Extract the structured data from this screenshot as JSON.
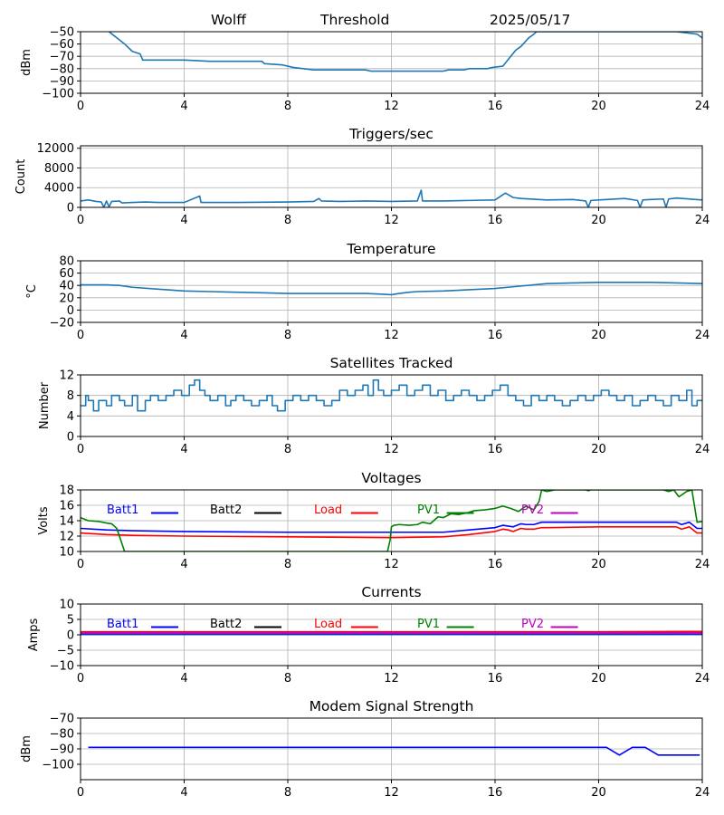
{
  "header": {
    "station": "Wolff",
    "mode": "Threshold",
    "date": "2025/05/17"
  },
  "chart_data": [
    {
      "id": "signal",
      "type": "line",
      "title": "",
      "xlabel": "",
      "ylabel": "dBm",
      "xlim": [
        0,
        24
      ],
      "ylim": [
        -100,
        -50
      ],
      "xticks": [
        0,
        4,
        8,
        12,
        16,
        20,
        24
      ],
      "yticks": [
        -100,
        -90,
        -80,
        -70,
        -60,
        -50
      ],
      "grid": true,
      "series": [
        {
          "color": "#1f77b4",
          "step": false,
          "x": [
            1.1,
            1.4,
            1.7,
            2.0,
            2.3,
            2.4,
            4.0,
            5.0,
            7.0,
            7.1,
            7.8,
            8.0,
            8.2,
            8.6,
            9.0,
            11.0,
            11.2,
            14.0,
            14.2,
            14.8,
            15.0,
            15.7,
            15.9,
            16.3,
            16.8,
            17.0,
            17.3,
            17.5,
            17.6,
            23.0,
            23.8,
            24.0
          ],
          "y": [
            -50,
            -55,
            -60,
            -66,
            -68,
            -73,
            -73,
            -74,
            -74,
            -76,
            -77,
            -78,
            -79,
            -80,
            -81,
            -81,
            -82,
            -82,
            -81,
            -81,
            -80,
            -80,
            -79,
            -78,
            -65,
            -62,
            -55,
            -52,
            -50,
            -50,
            -52,
            -55
          ]
        }
      ]
    },
    {
      "id": "triggers",
      "type": "line",
      "title": "Triggers/sec",
      "xlabel": "",
      "ylabel": "Count",
      "xlim": [
        0,
        24
      ],
      "ylim": [
        0,
        12500
      ],
      "xticks": [
        0,
        4,
        8,
        12,
        16,
        20,
        24
      ],
      "yticks": [
        0,
        4000,
        8000,
        12000
      ],
      "grid": true,
      "series": [
        {
          "color": "#1f77b4",
          "step": false,
          "x": [
            0,
            0.3,
            0.6,
            0.8,
            0.9,
            1.0,
            1.1,
            1.2,
            1.5,
            1.6,
            2.0,
            2.5,
            3.0,
            4.0,
            4.6,
            4.65,
            4.7,
            6.0,
            8.0,
            9.0,
            9.2,
            9.3,
            10.0,
            11.0,
            12.0,
            13.0,
            13.15,
            13.2,
            13.3,
            14.0,
            15.0,
            16.0,
            16.4,
            16.5,
            16.7,
            17.0,
            18.0,
            19.0,
            19.5,
            19.6,
            19.7,
            20.0,
            21.0,
            21.5,
            21.6,
            21.7,
            22.0,
            22.5,
            22.6,
            22.7,
            23.0,
            24.0
          ],
          "y": [
            1300,
            1500,
            1200,
            1100,
            0,
            1300,
            100,
            1200,
            1300,
            900,
            1000,
            1100,
            1000,
            1000,
            2300,
            1000,
            1000,
            1000,
            1100,
            1200,
            1800,
            1300,
            1200,
            1300,
            1200,
            1300,
            3500,
            1300,
            1300,
            1300,
            1400,
            1500,
            2900,
            2600,
            2000,
            1800,
            1500,
            1600,
            1300,
            0,
            1400,
            1500,
            1800,
            1400,
            0,
            1500,
            1600,
            1700,
            0,
            1700,
            1900,
            1500
          ]
        }
      ]
    },
    {
      "id": "temperature",
      "type": "line",
      "title": "Temperature",
      "xlabel": "",
      "ylabel": "°C",
      "xlim": [
        0,
        24
      ],
      "ylim": [
        -20,
        80
      ],
      "xticks": [
        0,
        4,
        8,
        12,
        16,
        20,
        24
      ],
      "yticks": [
        -20,
        0,
        20,
        40,
        60,
        80
      ],
      "grid": true,
      "series": [
        {
          "color": "#1f77b4",
          "step": false,
          "x": [
            0,
            1.0,
            1.5,
            2.0,
            3.0,
            4.0,
            5.0,
            6.0,
            7.0,
            8.0,
            9.0,
            10.0,
            11.0,
            11.5,
            12.0,
            12.3,
            12.7,
            13.0,
            14.0,
            15.0,
            16.0,
            16.5,
            17.0,
            17.5,
            18.0,
            19.0,
            20.0,
            21.0,
            22.0,
            23.0,
            24.0
          ],
          "y": [
            41,
            41,
            40,
            37,
            34,
            31,
            30,
            29,
            28,
            27,
            27,
            27,
            27,
            26,
            25,
            27,
            29,
            30,
            31,
            33,
            35,
            37,
            39,
            41,
            43,
            44,
            45,
            45,
            45,
            44,
            43
          ]
        }
      ]
    },
    {
      "id": "satellites",
      "type": "line",
      "title": "Satellites Tracked",
      "xlabel": "",
      "ylabel": "Number",
      "xlim": [
        0,
        24
      ],
      "ylim": [
        0,
        12
      ],
      "xticks": [
        0,
        4,
        8,
        12,
        16,
        20,
        24
      ],
      "yticks": [
        0,
        4,
        8,
        12
      ],
      "grid": true,
      "series": [
        {
          "color": "#1f77b4",
          "step": true,
          "x": [
            0,
            0.2,
            0.3,
            0.5,
            0.7,
            1.0,
            1.2,
            1.5,
            1.7,
            2.0,
            2.2,
            2.5,
            2.7,
            3.0,
            3.3,
            3.6,
            3.9,
            4.2,
            4.4,
            4.6,
            4.8,
            5.0,
            5.3,
            5.6,
            5.8,
            6.0,
            6.3,
            6.6,
            6.9,
            7.2,
            7.4,
            7.6,
            7.9,
            8.2,
            8.5,
            8.8,
            9.1,
            9.4,
            9.7,
            10.0,
            10.3,
            10.6,
            10.9,
            11.1,
            11.3,
            11.5,
            11.7,
            12.0,
            12.3,
            12.6,
            12.9,
            13.2,
            13.5,
            13.8,
            14.1,
            14.4,
            14.7,
            15.0,
            15.3,
            15.6,
            15.9,
            16.2,
            16.5,
            16.8,
            17.1,
            17.4,
            17.7,
            18.0,
            18.3,
            18.6,
            18.9,
            19.2,
            19.5,
            19.8,
            20.1,
            20.4,
            20.7,
            21.0,
            21.3,
            21.6,
            21.9,
            22.2,
            22.5,
            22.8,
            23.1,
            23.4,
            23.6,
            23.8,
            24.0
          ],
          "y": [
            6,
            8,
            7,
            5,
            7,
            6,
            8,
            7,
            6,
            8,
            5,
            7,
            8,
            7,
            8,
            9,
            8,
            10,
            11,
            9,
            8,
            7,
            8,
            6,
            7,
            8,
            7,
            6,
            7,
            8,
            6,
            5,
            7,
            8,
            7,
            8,
            7,
            6,
            7,
            9,
            8,
            9,
            10,
            8,
            11,
            9,
            8,
            9,
            10,
            8,
            9,
            10,
            8,
            9,
            7,
            8,
            9,
            8,
            7,
            8,
            9,
            10,
            8,
            7,
            6,
            8,
            7,
            8,
            7,
            6,
            7,
            8,
            7,
            8,
            9,
            8,
            7,
            8,
            6,
            7,
            8,
            7,
            6,
            8,
            7,
            9,
            6,
            7,
            7
          ]
        }
      ]
    },
    {
      "id": "voltages",
      "type": "line",
      "title": "Voltages",
      "xlabel": "",
      "ylabel": "Volts",
      "xlim": [
        0,
        24
      ],
      "ylim": [
        10,
        18
      ],
      "xticks": [
        0,
        4,
        8,
        12,
        16,
        20,
        24
      ],
      "yticks": [
        10,
        12,
        14,
        16,
        18
      ],
      "grid": true,
      "legend": "top",
      "series": [
        {
          "name": "Batt1",
          "color": "#0000ff",
          "step": false,
          "x": [
            0,
            1,
            2,
            4,
            8,
            12,
            14,
            15,
            16,
            16.3,
            16.5,
            16.7,
            17.0,
            17.2,
            17.5,
            17.8,
            18,
            20,
            22,
            23,
            23.2,
            23.5,
            23.8,
            24
          ],
          "y": [
            13.0,
            12.8,
            12.7,
            12.6,
            12.5,
            12.5,
            12.5,
            12.8,
            13.1,
            13.4,
            13.3,
            13.2,
            13.6,
            13.5,
            13.5,
            13.8,
            13.8,
            13.8,
            13.8,
            13.8,
            13.5,
            13.8,
            13.0,
            13.0
          ]
        },
        {
          "name": "Batt2",
          "color": "#000000",
          "step": false,
          "x": [],
          "y": []
        },
        {
          "name": "Load",
          "color": "#ff0000",
          "step": false,
          "x": [
            0,
            1,
            2,
            4,
            8,
            12,
            14,
            15,
            16,
            16.3,
            16.5,
            16.7,
            17.0,
            17.2,
            17.5,
            17.8,
            18,
            20,
            22,
            23,
            23.2,
            23.5,
            23.8,
            24
          ],
          "y": [
            12.4,
            12.2,
            12.1,
            12.0,
            11.9,
            11.8,
            11.9,
            12.2,
            12.6,
            12.9,
            12.8,
            12.6,
            13.0,
            12.9,
            12.9,
            13.1,
            13.1,
            13.2,
            13.2,
            13.2,
            12.9,
            13.2,
            12.4,
            12.4
          ]
        },
        {
          "name": "PV1",
          "color": "#008000",
          "step": false,
          "x": [
            0,
            0.3,
            0.7,
            1.0,
            1.2,
            1.4,
            1.5,
            1.6,
            1.7,
            11.85,
            11.95,
            12.0,
            12.1,
            12.3,
            12.7,
            13.0,
            13.2,
            13.5,
            13.8,
            14.0,
            14.3,
            14.6,
            14.9,
            15.2,
            15.6,
            16.0,
            16.3,
            16.6,
            16.9,
            17.2,
            17.5,
            17.7,
            17.8,
            18.0,
            18.3,
            19.5,
            19.6,
            19.7,
            20.0,
            22.5,
            22.7,
            22.9,
            23.1,
            23.4,
            23.6,
            23.8,
            24.0
          ],
          "y": [
            14.4,
            14.0,
            13.9,
            13.7,
            13.6,
            13.0,
            12.0,
            11.0,
            10.0,
            10.0,
            11.5,
            13.2,
            13.4,
            13.5,
            13.4,
            13.5,
            13.8,
            13.6,
            14.5,
            14.4,
            14.9,
            14.8,
            15.0,
            15.3,
            15.4,
            15.6,
            15.9,
            15.6,
            15.2,
            15.9,
            15.4,
            16.5,
            18.0,
            17.8,
            18.0,
            18.0,
            17.9,
            18.0,
            18.0,
            18.0,
            17.8,
            18.0,
            17.1,
            17.8,
            18.0,
            13.8,
            13.9
          ]
        },
        {
          "name": "PV2",
          "color": "#bf00bf",
          "step": false,
          "x": [],
          "y": []
        }
      ]
    },
    {
      "id": "currents",
      "type": "line",
      "title": "Currents",
      "xlabel": "",
      "ylabel": "Amps",
      "xlim": [
        0,
        24
      ],
      "ylim": [
        -10,
        10
      ],
      "xticks": [
        0,
        4,
        8,
        12,
        16,
        20,
        24
      ],
      "yticks": [
        -10,
        -5,
        0,
        5,
        10
      ],
      "grid": true,
      "legend": "top",
      "series": [
        {
          "name": "Batt1",
          "color": "#0000ff",
          "step": false,
          "x": [
            0,
            24
          ],
          "y": [
            0.2,
            0.2
          ]
        },
        {
          "name": "Batt2",
          "color": "#000000",
          "step": false,
          "x": [],
          "y": []
        },
        {
          "name": "Load",
          "color": "#ff0000",
          "step": false,
          "x": [
            0,
            4,
            8,
            12,
            16,
            20,
            24
          ],
          "y": [
            0.9,
            0.9,
            0.9,
            0.9,
            0.9,
            0.9,
            1.0
          ]
        },
        {
          "name": "PV1",
          "color": "#008000",
          "step": false,
          "x": [
            0,
            24
          ],
          "y": [
            0.5,
            0.5
          ]
        },
        {
          "name": "PV2",
          "color": "#bf00bf",
          "step": false,
          "x": [
            0,
            24
          ],
          "y": [
            0.6,
            0.6
          ]
        }
      ]
    },
    {
      "id": "modem",
      "type": "line",
      "title": "Modem Signal Strength",
      "xlabel": "",
      "ylabel": "dBm",
      "xlim": [
        0,
        24
      ],
      "ylim": [
        -110,
        -70
      ],
      "xticks": [
        0,
        4,
        8,
        12,
        16,
        20,
        24
      ],
      "yticks": [
        -100,
        -90,
        -80,
        -70
      ],
      "grid": true,
      "series": [
        {
          "color": "#0000ff",
          "step": false,
          "x": [
            0.3,
            20.3,
            20.8,
            21.3,
            21.8,
            22.3,
            23.0,
            23.9
          ],
          "y": [
            -89,
            -89,
            -94,
            -89,
            -89,
            -94,
            -94,
            -94
          ]
        }
      ]
    }
  ]
}
